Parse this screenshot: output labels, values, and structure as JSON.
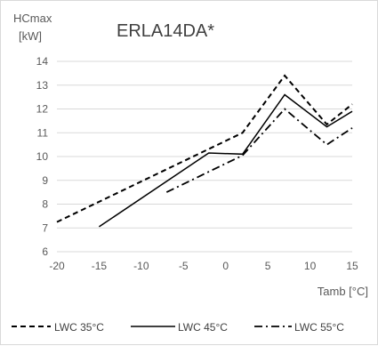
{
  "chart_data": {
    "type": "line",
    "title": "ERLA14DA*",
    "ylabel_line1": "HCmax",
    "ylabel_line2": "[kW]",
    "xlabel": "Tamb [°C]",
    "xlim": [
      -20,
      15
    ],
    "ylim": [
      6,
      14
    ],
    "xticks": [
      -20,
      -15,
      -10,
      -5,
      0,
      5,
      10,
      15
    ],
    "yticks": [
      6,
      7,
      8,
      9,
      10,
      11,
      12,
      13,
      14
    ],
    "grid": "horizontal",
    "legend_position": "bottom",
    "series": [
      {
        "name": "LWC 35°C",
        "dash": "dashed",
        "points": [
          [
            -20,
            7.25
          ],
          [
            2,
            11.0
          ],
          [
            7,
            13.4
          ],
          [
            12,
            11.35
          ],
          [
            15,
            12.2
          ]
        ]
      },
      {
        "name": "LWC 45°C",
        "dash": "solid",
        "points": [
          [
            -15,
            7.05
          ],
          [
            -2,
            10.15
          ],
          [
            2,
            10.1
          ],
          [
            7,
            12.6
          ],
          [
            12,
            11.25
          ],
          [
            15,
            11.9
          ]
        ]
      },
      {
        "name": "LWC 55°C",
        "dash": "dashdot",
        "points": [
          [
            -7,
            8.5
          ],
          [
            2,
            10.05
          ],
          [
            7,
            12.0
          ],
          [
            12,
            10.5
          ],
          [
            15,
            11.2
          ]
        ]
      }
    ],
    "colors": {
      "line": "#000000",
      "grid": "#d9d9d9",
      "text": "#595959"
    }
  }
}
